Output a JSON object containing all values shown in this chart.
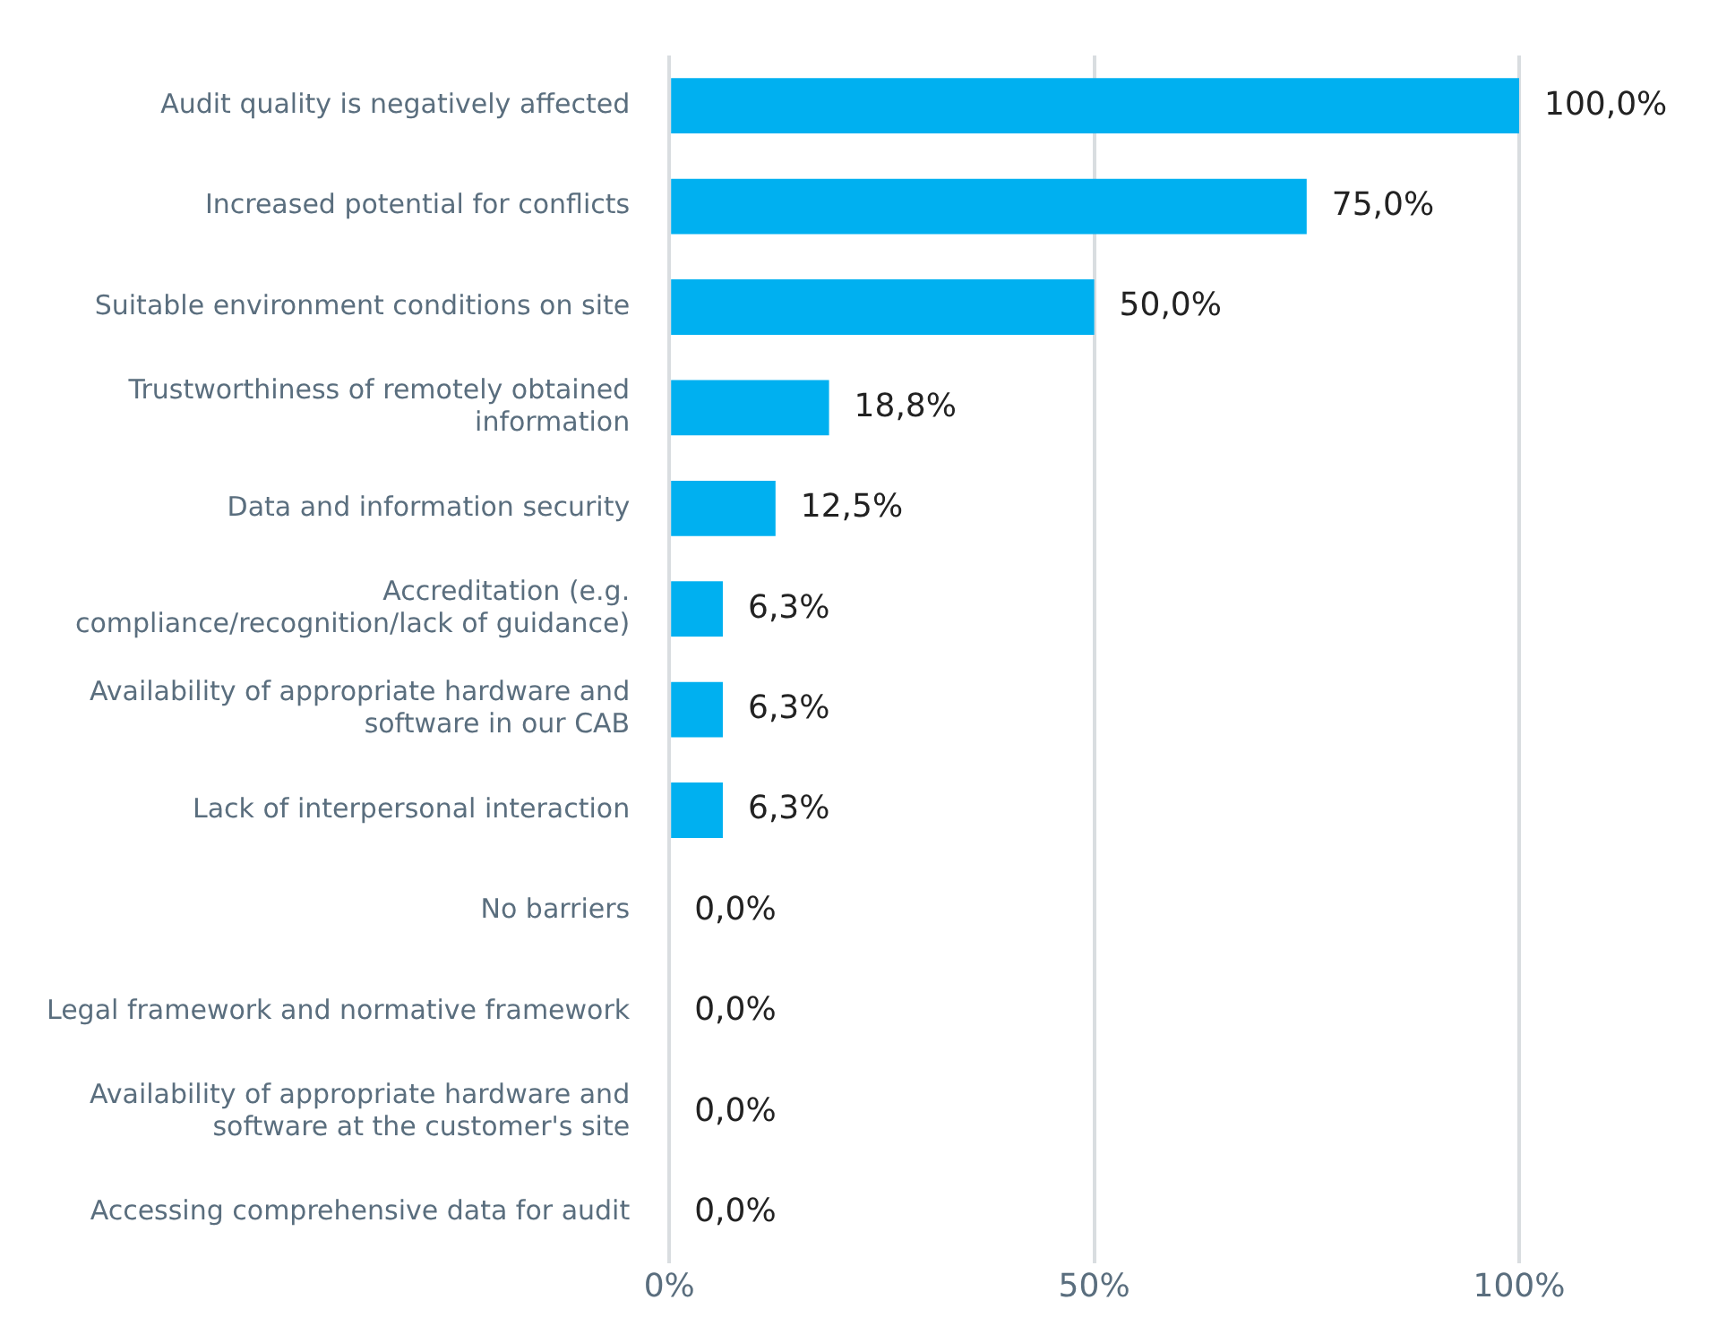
{
  "chart_data": {
    "type": "bar",
    "orientation": "horizontal",
    "categories": [
      "Audit quality is negatively affected",
      "Increased potential for conflicts",
      "Suitable environment conditions on site",
      "Trustworthiness of remotely obtained information",
      "Data and information security",
      "Accreditation (e.g. compliance/recognition/lack of guidance)",
      "Availability of appropriate hardware and software in our CAB",
      "Lack of interpersonal interaction",
      "No barriers",
      "Legal framework and normative framework",
      "Availability of appropriate hardware and software at the customer's site",
      "Accessing comprehensive data for audit"
    ],
    "values": [
      100,
      75,
      50,
      18.8,
      12.5,
      6.3,
      6.3,
      6.3,
      0,
      0,
      0,
      0
    ],
    "value_labels": [
      "100,0%",
      "75,0%",
      "50,0%",
      "18,8%",
      "12,5%",
      "6,3%",
      "6,3%",
      "6,3%",
      "0,0%",
      "0,0%",
      "0,0%",
      "0,0%"
    ],
    "color": "#00b0f0",
    "xlim": [
      0,
      100
    ],
    "xticks": [
      {
        "value": 0,
        "label": "0%"
      },
      {
        "value": 50,
        "label": "50%"
      },
      {
        "value": 100,
        "label": "100%"
      }
    ],
    "grid": "x",
    "legend": false
  }
}
